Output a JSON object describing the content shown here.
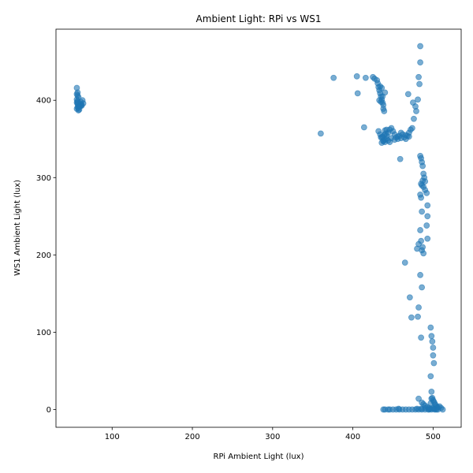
{
  "chart_data": {
    "type": "scatter",
    "title": "Ambient Light: RPi vs WS1",
    "xlabel": "RPi Ambient Light (lux)",
    "ylabel": "WS1 Ambient Light (lux)",
    "xlim": [
      30,
      535
    ],
    "ylim": [
      -23,
      492
    ],
    "xticks": [
      100,
      200,
      300,
      400,
      500
    ],
    "yticks": [
      0,
      100,
      200,
      300,
      400
    ],
    "grid": false,
    "marker_color": "#1f77b4",
    "marker_alpha": 0.6,
    "series": [
      {
        "x": [
          56,
          57,
          56,
          57,
          58,
          56,
          57,
          58,
          57,
          56,
          58,
          60,
          62,
          61,
          63,
          64,
          60,
          58,
          59,
          57,
          61,
          62,
          56,
          57,
          59,
          360,
          376,
          405,
          406,
          414,
          416,
          425,
          427,
          430,
          431,
          432,
          433,
          434,
          435,
          436,
          437,
          438,
          438,
          439,
          440,
          434,
          436,
          437,
          433,
          435,
          432,
          434,
          436,
          438,
          440,
          442,
          444,
          446,
          448,
          450,
          452,
          454,
          456,
          458,
          460,
          462,
          464,
          466,
          468,
          470,
          472,
          474,
          436,
          438,
          440,
          442,
          444,
          446,
          435,
          437,
          439,
          441,
          448,
          452,
          456,
          460,
          466,
          470,
          440,
          442,
          459,
          469,
          475,
          478,
          479,
          481,
          482,
          483,
          484,
          484,
          476,
          484,
          485,
          486,
          487,
          488,
          489,
          490,
          486,
          487,
          485,
          488,
          490,
          492,
          484,
          485,
          486,
          492,
          493,
          493,
          493,
          484,
          485,
          487,
          486,
          488,
          480,
          482,
          484,
          486,
          465,
          481,
          482,
          471,
          485,
          473,
          497,
          498,
          499,
          500,
          500,
          501,
          497,
          498,
          499,
          500,
          501,
          502,
          503,
          504,
          505,
          495,
          496,
          493,
          490,
          488,
          486,
          500,
          502,
          504,
          506,
          508,
          510,
          512,
          498,
          497,
          438,
          440,
          444,
          446,
          450,
          454,
          458,
          462,
          466,
          470,
          474,
          478,
          482,
          486,
          490,
          494,
          498,
          502,
          506,
          480,
          485,
          490,
          495,
          500,
          457,
          482
        ],
        "y": [
          416,
          410,
          408,
          406,
          404,
          397,
          395,
          393,
          391,
          389,
          387,
          392,
          394,
          398,
          400,
          396,
          393,
          390,
          388,
          397,
          395,
          393,
          401,
          399,
          392,
          357,
          429,
          431,
          409,
          365,
          429,
          430,
          428,
          426,
          422,
          417,
          413,
          409,
          405,
          401,
          397,
          394,
          389,
          386,
          410,
          418,
          416,
          405,
          400,
          398,
          360,
          356,
          352,
          348,
          346,
          354,
          358,
          362,
          364,
          360,
          356,
          352,
          350,
          354,
          358,
          356,
          352,
          350,
          354,
          358,
          362,
          364,
          345,
          347,
          349,
          350,
          348,
          346,
          352,
          353,
          355,
          357,
          351,
          349,
          353,
          351,
          355,
          353,
          361,
          362,
          324,
          408,
          397,
          392,
          386,
          401,
          430,
          421,
          449,
          470,
          376,
          328,
          325,
          320,
          315,
          305,
          300,
          295,
          290,
          296,
          292,
          288,
          284,
          280,
          278,
          274,
          256,
          238,
          221,
          264,
          250,
          232,
          218,
          210,
          206,
          202,
          208,
          214,
          174,
          158,
          190,
          120,
          132,
          145,
          93,
          119,
          106,
          95,
          88,
          80,
          70,
          60,
          43,
          23,
          15,
          12,
          10,
          8,
          6,
          4,
          2,
          0,
          1,
          3,
          5,
          7,
          9,
          2,
          1,
          0,
          3,
          4,
          2,
          0,
          14,
          8,
          0,
          0,
          0,
          0,
          0,
          0,
          0,
          0,
          0,
          0,
          0,
          0,
          0,
          0,
          0,
          0,
          0,
          0,
          0,
          1,
          1,
          2,
          2,
          1,
          1,
          14
        ]
      }
    ]
  }
}
